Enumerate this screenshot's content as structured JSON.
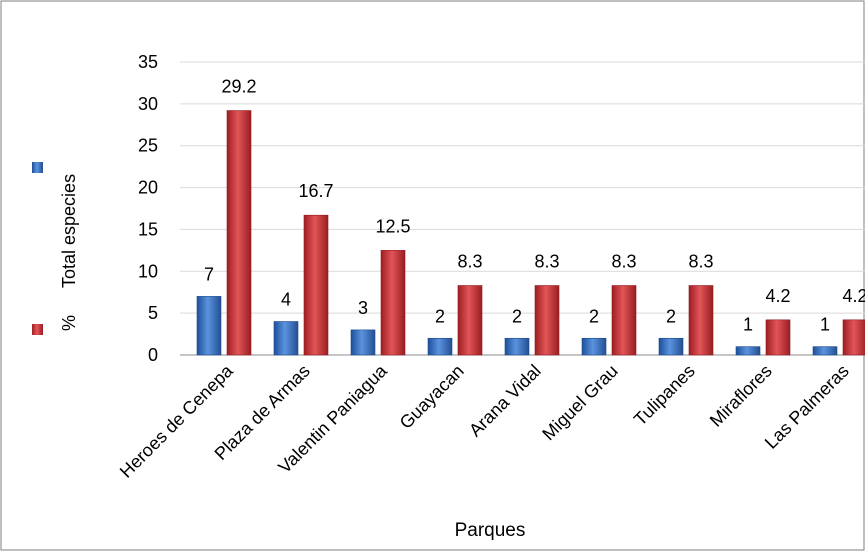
{
  "chart_data": {
    "type": "bar",
    "categories": [
      "Heroes de Cenepa",
      "Plaza de Armas",
      "Valentin Paniagua",
      "Guayacan",
      "Arana Vidal",
      "Miguel Grau",
      "Tulipanes",
      "Miraflores",
      "Las Palmeras"
    ],
    "series": [
      {
        "name": "Total especies",
        "values": [
          7,
          4,
          3,
          2,
          2,
          2,
          2,
          1,
          1
        ],
        "labels": [
          "7",
          "4",
          "3",
          "2",
          "2",
          "2",
          "2",
          "1",
          "1"
        ],
        "color": "#3d74c4"
      },
      {
        "name": "%",
        "values": [
          29.2,
          16.7,
          12.5,
          8.3,
          8.3,
          8.3,
          8.3,
          4.2,
          4.2
        ],
        "labels": [
          "29.2",
          "16.7",
          "12.5",
          "8.3",
          "8.3",
          "8.3",
          "8.3",
          "4.2",
          "4.2"
        ],
        "color": "#c8373a"
      }
    ],
    "xlabel": "Parques",
    "ylabel": "",
    "ylim": [
      0,
      35
    ],
    "yticks": [
      "0",
      "5",
      "10",
      "15",
      "20",
      "25",
      "30",
      "35"
    ],
    "grid": true,
    "legend": "left"
  }
}
